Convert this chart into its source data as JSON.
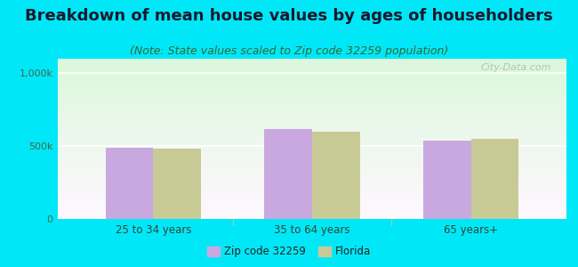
{
  "title": "Breakdown of mean house values by ages of householders",
  "subtitle": "(Note: State values scaled to Zip code 32259 population)",
  "categories": [
    "25 to 34 years",
    "35 to 64 years",
    "65 years+"
  ],
  "zip_values": [
    490000,
    620000,
    535000
  ],
  "fl_values": [
    485000,
    600000,
    550000
  ],
  "ylim": [
    0,
    1100000
  ],
  "ytick_labels": [
    "0",
    "500k",
    "1,000k"
  ],
  "ytick_vals": [
    0,
    500000,
    1000000
  ],
  "bar_color_zip": "#c9a8e0",
  "bar_color_fl": "#c8ca96",
  "bg_color_topleft": "#d6f0d0",
  "bg_color_topright": "#f0f8ee",
  "bg_color_bottom": "#ffffff",
  "outer_bg": "#00e8f8",
  "legend_zip": "Zip code 32259",
  "legend_fl": "Florida",
  "title_fontsize": 13,
  "subtitle_fontsize": 9,
  "bar_width": 0.3,
  "watermark": "City-Data.com",
  "separator_color": "#aaccaa",
  "grid_color": "#ccddcc",
  "tick_label_color": "#446644",
  "axis_border_color": "#99bb99"
}
